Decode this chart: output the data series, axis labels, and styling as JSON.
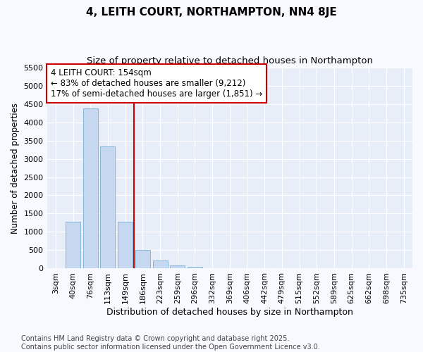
{
  "title": "4, LEITH COURT, NORTHAMPTON, NN4 8JE",
  "subtitle": "Size of property relative to detached houses in Northampton",
  "xlabel": "Distribution of detached houses by size in Northampton",
  "ylabel": "Number of detached properties",
  "categories": [
    "3sqm",
    "40sqm",
    "76sqm",
    "113sqm",
    "149sqm",
    "186sqm",
    "223sqm",
    "259sqm",
    "296sqm",
    "332sqm",
    "369sqm",
    "406sqm",
    "442sqm",
    "479sqm",
    "515sqm",
    "552sqm",
    "589sqm",
    "625sqm",
    "662sqm",
    "698sqm",
    "735sqm"
  ],
  "values": [
    0,
    1270,
    4380,
    3340,
    1280,
    500,
    230,
    90,
    50,
    0,
    0,
    15,
    0,
    0,
    0,
    0,
    0,
    0,
    0,
    0,
    0
  ],
  "bar_color": "#c5d8f0",
  "bar_edge_color": "#7aafd4",
  "vline_index": 4,
  "property_line_label": "4 LEITH COURT: 154sqm",
  "annotation_line1": "← 83% of detached houses are smaller (9,212)",
  "annotation_line2": "17% of semi-detached houses are larger (1,851) →",
  "annotation_box_color": "#cc0000",
  "vline_color": "#cc0000",
  "ylim": [
    0,
    5500
  ],
  "yticks": [
    0,
    500,
    1000,
    1500,
    2000,
    2500,
    3000,
    3500,
    4000,
    4500,
    5000,
    5500
  ],
  "footer_line1": "Contains HM Land Registry data © Crown copyright and database right 2025.",
  "footer_line2": "Contains public sector information licensed under the Open Government Licence v3.0.",
  "fig_bg_color": "#f8f9ff",
  "plot_bg_color": "#e8eef8",
  "grid_color": "#ffffff",
  "title_fontsize": 11,
  "subtitle_fontsize": 9.5,
  "xlabel_fontsize": 9,
  "ylabel_fontsize": 8.5,
  "tick_fontsize": 8,
  "annot_fontsize": 8.5,
  "footer_fontsize": 7
}
